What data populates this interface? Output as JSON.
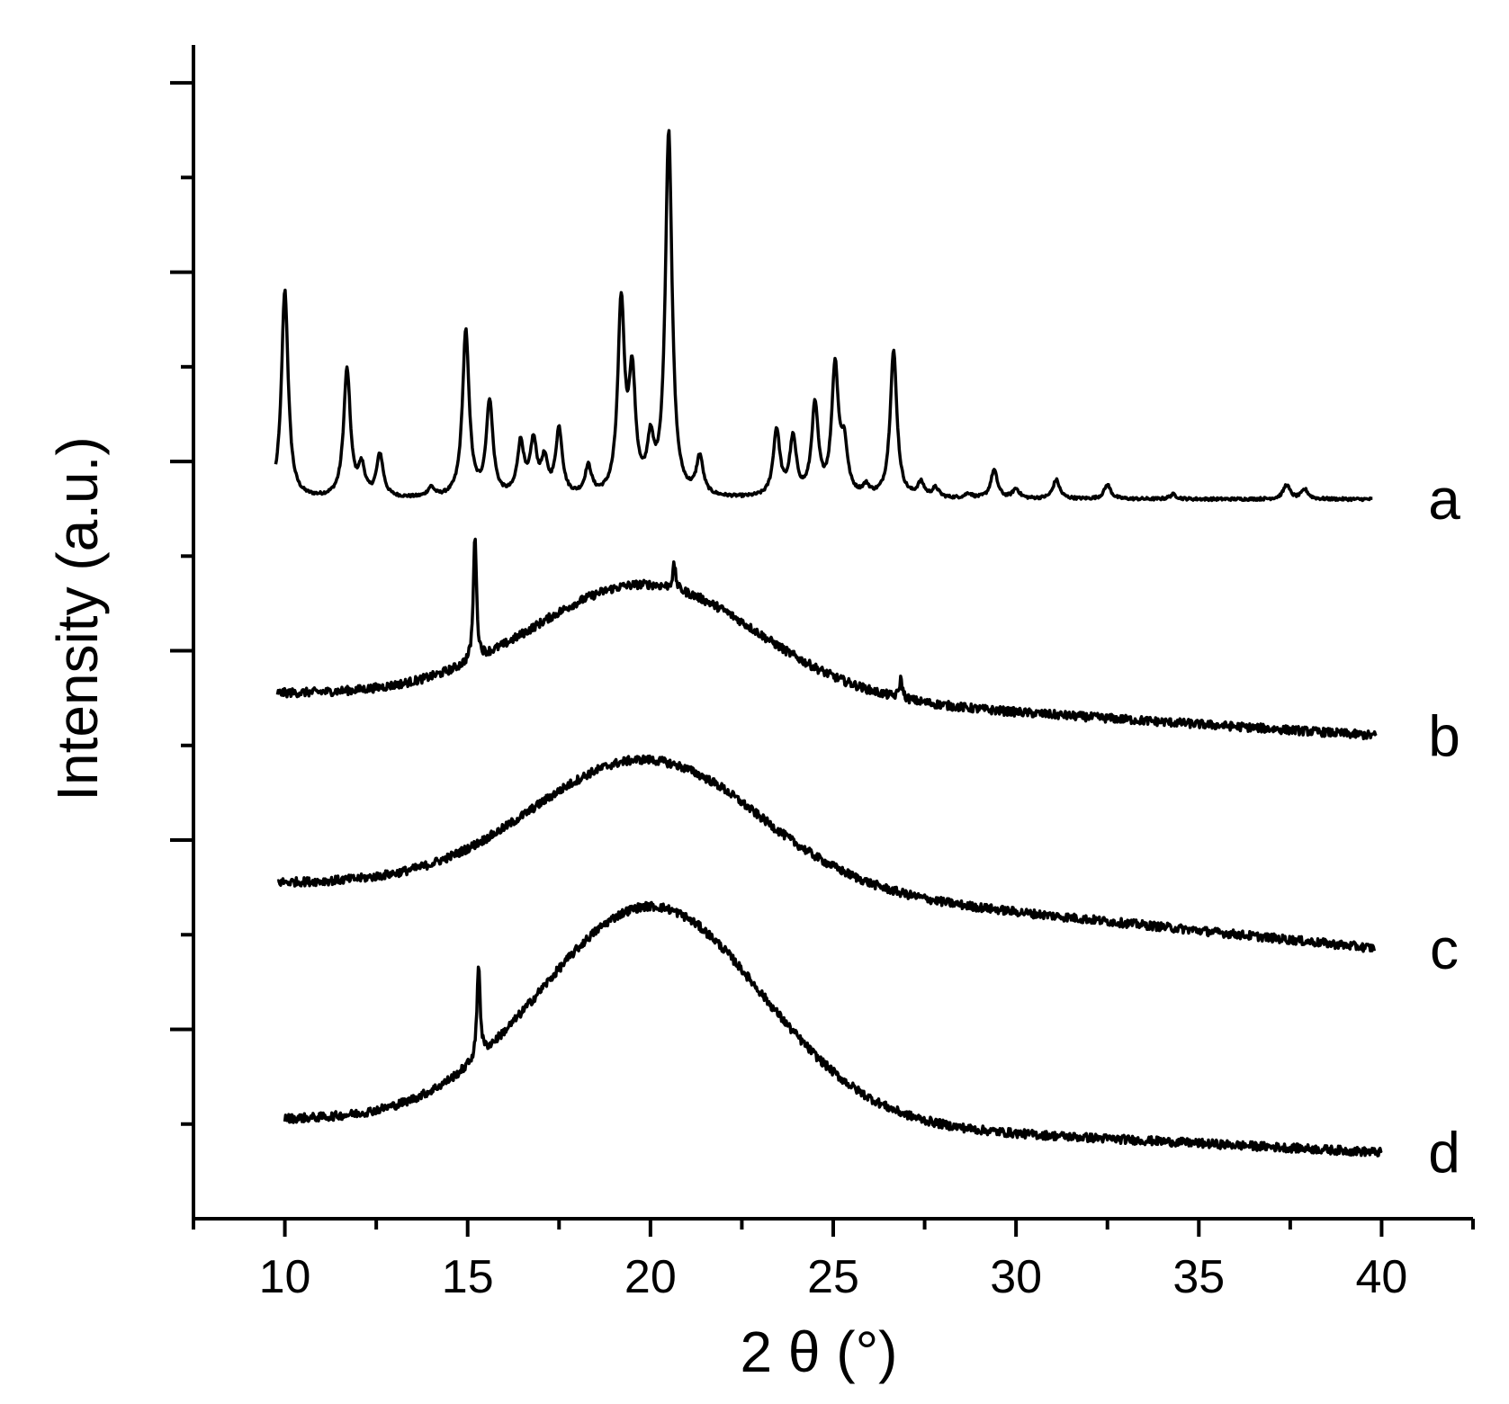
{
  "chart_data": {
    "type": "line",
    "title": "",
    "xlabel": "2 θ (°)",
    "ylabel": "Intensity (a.u.)",
    "xlim": [
      7.5,
      42.5
    ],
    "ylim": [
      0,
      12.4
    ],
    "x_ticks": [
      10,
      15,
      20,
      25,
      30,
      35,
      40
    ],
    "x_minor_ticks": [
      7.5,
      12.5,
      17.5,
      22.5,
      27.5,
      32.5,
      37.5,
      42.5
    ],
    "y_tick_labels_shown": false,
    "grid": false,
    "legend": "none",
    "series": [
      {
        "name": "a",
        "x_range": [
          9.75,
          39.75
        ],
        "baseline": 7.6,
        "end_value": 7.6,
        "peaks": [
          {
            "x": 10.0,
            "height": 2.2
          },
          {
            "x": 11.7,
            "height": 1.35
          },
          {
            "x": 12.1,
            "height": 0.3
          },
          {
            "x": 12.6,
            "height": 0.45
          },
          {
            "x": 14.0,
            "height": 0.1
          },
          {
            "x": 14.95,
            "height": 1.75
          },
          {
            "x": 15.6,
            "height": 1.0
          },
          {
            "x": 16.45,
            "height": 0.55
          },
          {
            "x": 16.8,
            "height": 0.55
          },
          {
            "x": 17.1,
            "height": 0.35
          },
          {
            "x": 17.5,
            "height": 0.7
          },
          {
            "x": 18.3,
            "height": 0.3
          },
          {
            "x": 19.2,
            "height": 2.0
          },
          {
            "x": 19.5,
            "height": 1.2
          },
          {
            "x": 20.0,
            "height": 0.5
          },
          {
            "x": 20.5,
            "height": 3.85
          },
          {
            "x": 21.35,
            "height": 0.4
          },
          {
            "x": 23.45,
            "height": 0.7
          },
          {
            "x": 23.9,
            "height": 0.6
          },
          {
            "x": 24.5,
            "height": 0.95
          },
          {
            "x": 25.05,
            "height": 1.35
          },
          {
            "x": 25.3,
            "height": 0.5
          },
          {
            "x": 25.9,
            "height": 0.1
          },
          {
            "x": 26.65,
            "height": 1.55
          },
          {
            "x": 27.4,
            "height": 0.15
          },
          {
            "x": 27.8,
            "height": 0.1
          },
          {
            "x": 28.7,
            "height": 0.05
          },
          {
            "x": 29.4,
            "height": 0.3
          },
          {
            "x": 30.0,
            "height": 0.1
          },
          {
            "x": 31.1,
            "height": 0.2
          },
          {
            "x": 32.5,
            "height": 0.15
          },
          {
            "x": 34.3,
            "height": 0.05
          },
          {
            "x": 37.4,
            "height": 0.15
          },
          {
            "x": 37.9,
            "height": 0.1
          }
        ]
      },
      {
        "name": "b",
        "x_range": [
          9.8,
          39.85
        ],
        "baseline": 5.55,
        "hump_center": 19.8,
        "hump_height": 1.15,
        "end_value": 5.1,
        "sharp_peaks": [
          {
            "x": 15.2,
            "height": 1.35
          },
          {
            "x": 20.65,
            "height": 0.25
          },
          {
            "x": 26.85,
            "height": 0.2
          }
        ]
      },
      {
        "name": "c",
        "x_range": [
          9.8,
          39.8
        ],
        "baseline": 3.55,
        "hump_center": 19.8,
        "hump_height": 1.3,
        "end_value": 2.85,
        "sharp_peaks": []
      },
      {
        "name": "d",
        "x_range": [
          10.0,
          40.0
        ],
        "baseline": 1.05,
        "hump_center": 20.0,
        "hump_height": 2.25,
        "end_value": 0.7,
        "sharp_peaks": [
          {
            "x": 15.3,
            "height": 1.0
          }
        ]
      }
    ]
  }
}
